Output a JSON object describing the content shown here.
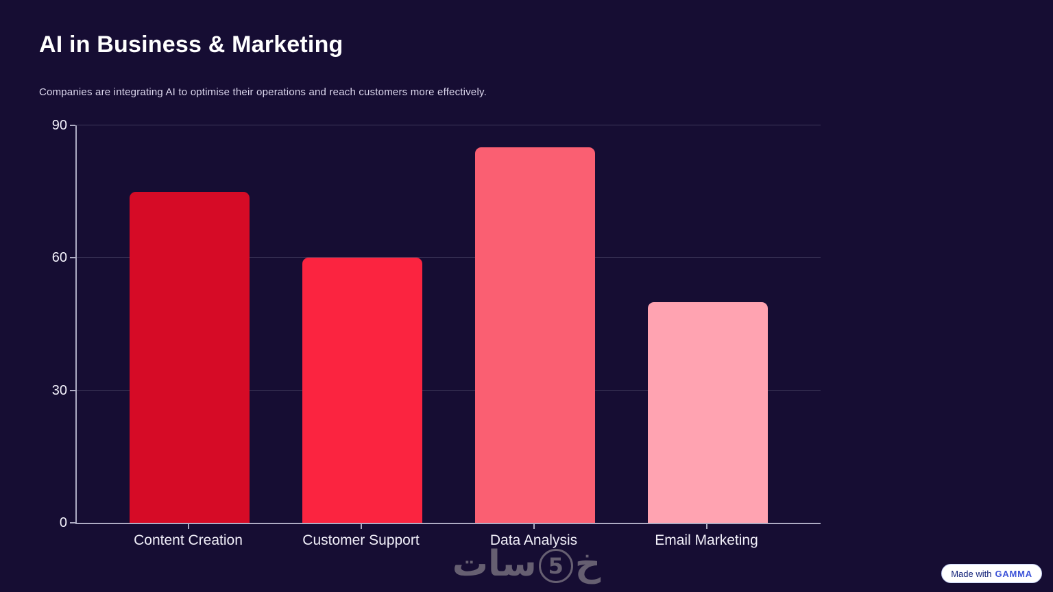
{
  "page": {
    "title": "AI in Business & Marketing",
    "subtitle": "Companies are integrating AI to optimise their operations and reach customers more effectively."
  },
  "chart_data": {
    "type": "bar",
    "categories": [
      "Content Creation",
      "Customer Support",
      "Data Analysis",
      "Email Marketing"
    ],
    "values": [
      75,
      60,
      85,
      50
    ],
    "bar_colors": [
      "#d60b26",
      "#fb2440",
      "#fa5f72",
      "#ffa3b1"
    ],
    "title": "",
    "xlabel": "",
    "ylabel": "",
    "ylim": [
      0,
      90
    ],
    "yticks": [
      0,
      30,
      60,
      90
    ],
    "grid": true,
    "legend": false
  },
  "watermark": {
    "brand": "خمسات",
    "prefix": "خ",
    "digit": "5",
    "suffix": "سات"
  },
  "badge": {
    "made_with_label": "Made with",
    "brand": "gamma"
  },
  "colors": {
    "background": "#160d33",
    "axis": "#aeacc4",
    "bar_dark_red": "#d60b26",
    "bar_red": "#fb2440",
    "bar_salmon": "#fa5f72",
    "bar_pink": "#ffa3b1",
    "badge_brand_blue": "#3b52d8"
  }
}
